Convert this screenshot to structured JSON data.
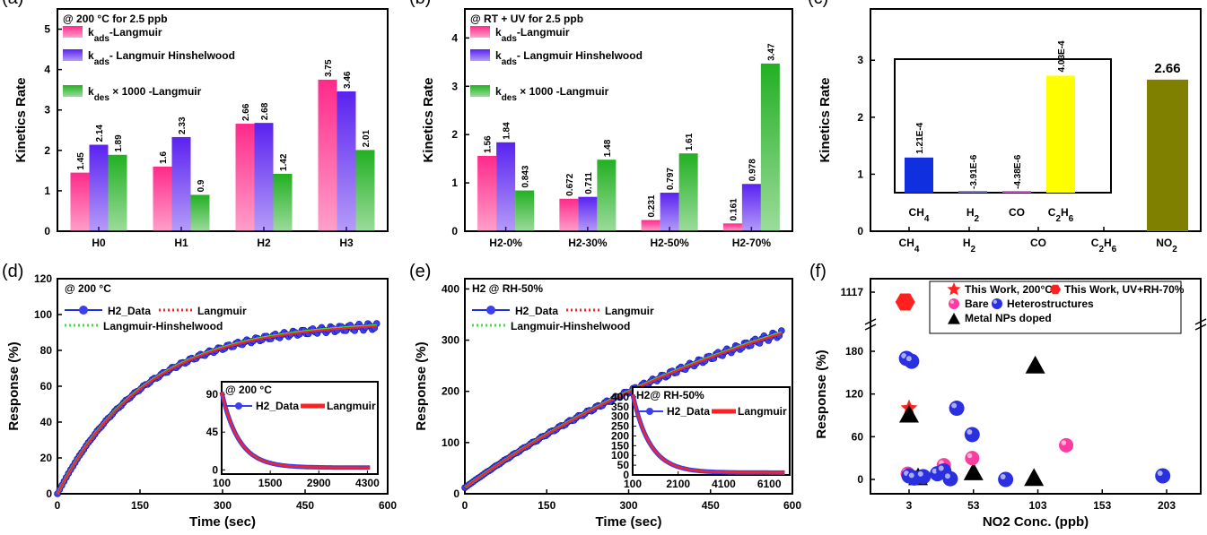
{
  "chart_data": [
    {
      "panel": "(a)",
      "type": "bar",
      "title": "@ 200 °C for 2.5 ppb",
      "ylabel": "Kinetics Rate",
      "xlabel": "",
      "categories": [
        "H0",
        "H1",
        "H2",
        "H3"
      ],
      "ylim": [
        0,
        5.5
      ],
      "yticks": [
        "0",
        "1",
        "2",
        "3",
        "4",
        "5"
      ],
      "series": [
        {
          "name": "kads-Langmuir",
          "color": "#ff2a8a",
          "values": [
            1.45,
            1.6,
            2.66,
            3.75
          ],
          "labels": [
            "1.45",
            "1.6",
            "2.66",
            "3.75"
          ]
        },
        {
          "name": "kads- Langmuir Hinshelwood",
          "color": "#5a22f0",
          "values": [
            2.14,
            2.33,
            2.68,
            3.46
          ],
          "labels": [
            "2.14",
            "2.33",
            "2.68",
            "3.46"
          ]
        },
        {
          "name": "kdes× 1000 -Langmuir",
          "color": "#22b022",
          "values": [
            1.89,
            0.9,
            1.42,
            2.01
          ],
          "labels": [
            "1.89",
            "0.9",
            "1.42",
            "2.01"
          ]
        }
      ]
    },
    {
      "panel": "(b)",
      "type": "bar",
      "title": "@ RT + UV for 2.5 ppb",
      "ylabel": "Kinetics Rate",
      "xlabel": "",
      "categories": [
        "H2-0%",
        "H2-30%",
        "H2-50%",
        "H2-70%"
      ],
      "ylim": [
        0,
        4.6
      ],
      "yticks": [
        "0",
        "1",
        "2",
        "3",
        "4"
      ],
      "series": [
        {
          "name": "kads-Langmuir",
          "color": "#ff2a8a",
          "values": [
            1.56,
            0.672,
            0.231,
            0.161
          ],
          "labels": [
            "1.56",
            "0.672",
            "0.231",
            "0.161"
          ]
        },
        {
          "name": "kads- Langmuir Hinshelwood",
          "color": "#5a22f0",
          "values": [
            1.84,
            0.711,
            0.797,
            0.978
          ],
          "labels": [
            "1.84",
            "0.711",
            "0.797",
            "0.978"
          ]
        },
        {
          "name": "kdes× 1000 -Langmuir",
          "color": "#22b022",
          "values": [
            0.843,
            1.48,
            1.61,
            3.47
          ],
          "labels": [
            "0.843",
            "1.48",
            "1.61",
            "3.47"
          ]
        }
      ]
    },
    {
      "panel": "(c)",
      "type": "bar",
      "ylabel": "Kinetics Rate",
      "xlabel": "",
      "categories": [
        "CH4",
        "H2",
        "CO",
        "C2H6",
        "NO2"
      ],
      "ylim": [
        0,
        3.9
      ],
      "yticks": [
        "0",
        "1",
        "2",
        "3"
      ],
      "values": [
        0,
        0,
        0,
        0,
        2.66
      ],
      "main_label": "2.66",
      "main_color": "#808000",
      "inset": {
        "categories": [
          "CH4",
          "H2",
          "CO",
          "C2H6"
        ],
        "values": [
          0.000121,
          -3.91e-06,
          -4.38e-06,
          0.000403
        ],
        "labels": [
          "1.21E-4",
          "-3.91E-6",
          "-4.38E-6",
          "4.03E-4"
        ],
        "colors": [
          "#1030e0",
          "#8080d0",
          "#e060e0",
          "#ffff00"
        ]
      }
    },
    {
      "panel": "(d)",
      "type": "line",
      "title": "@ 200 °C",
      "xlabel": "Time (sec)",
      "ylabel": "Response (%)",
      "xlim": [
        0,
        600
      ],
      "ylim": [
        0,
        120
      ],
      "xticks": [
        "0",
        "150",
        "300",
        "450",
        "600"
      ],
      "yticks": [
        "0",
        "20",
        "40",
        "60",
        "80",
        "100",
        "120"
      ],
      "series": [
        {
          "name": "H2_Data",
          "color": "#2030e0",
          "style": "markers"
        },
        {
          "name": "Langmuir",
          "color": "#ff2020",
          "style": "dotted"
        },
        {
          "name": "Langmuir-Hinshelwood",
          "color": "#40e040",
          "style": "dotted"
        }
      ],
      "inset": {
        "title": "@ 200 °C",
        "xlim": [
          100,
          4600
        ],
        "ylim": [
          -5,
          105
        ],
        "xticks": [
          "100",
          "1500",
          "2900",
          "4300"
        ],
        "yticks": [
          "0",
          "45",
          "90"
        ],
        "legend": [
          "H2_Data",
          "Langmuir"
        ]
      }
    },
    {
      "panel": "(e)",
      "type": "line",
      "title": "H2 @ RH-50%",
      "xlabel": "Time (sec)",
      "ylabel": "Response (%)",
      "xlim": [
        0,
        600
      ],
      "ylim": [
        0,
        420
      ],
      "xticks": [
        "0",
        "150",
        "300",
        "450",
        "600"
      ],
      "yticks": [
        "0",
        "100",
        "200",
        "300",
        "400"
      ],
      "series": [
        {
          "name": "H2_Data",
          "color": "#2030e0",
          "style": "markers"
        },
        {
          "name": "Langmuir",
          "color": "#ff2020",
          "style": "dotted"
        },
        {
          "name": "Langmuir-Hinshelwood",
          "color": "#40e040",
          "style": "dotted"
        }
      ],
      "inset": {
        "title": "H2@ RH-50%",
        "xlim": [
          100,
          7000
        ],
        "ylim": [
          0,
          450
        ],
        "xticks": [
          "100",
          "2100",
          "4100",
          "6100"
        ],
        "yticks": [
          "0",
          "50",
          "100",
          "150",
          "200",
          "250",
          "300",
          "350",
          "400"
        ],
        "legend": [
          "H2_Data",
          "Langmuir"
        ]
      }
    },
    {
      "panel": "(f)",
      "type": "scatter",
      "xlabel": "NO2 Conc. (ppb)",
      "ylabel": "Response (%)",
      "xticks": [
        "3",
        "53",
        "103",
        "153",
        "203"
      ],
      "yticks": [
        "0",
        "60",
        "120",
        "180"
      ],
      "ytick_break": "1117",
      "legend": [
        "This Work, 200°C",
        "This Work, UV+RH-70%",
        "Bare",
        "Heterostructures",
        "Metal NPs doped"
      ],
      "points": [
        {
          "group": "This Work, UV+RH-70%",
          "x": 0,
          "y": 1117,
          "color": "#ff2020"
        },
        {
          "group": "This Work, 200°C",
          "x": 3,
          "y": 100,
          "color": "#ff2020"
        },
        {
          "group": "Metal NPs doped",
          "x": 3,
          "y": 91
        },
        {
          "group": "Metal NPs doped",
          "x": 10,
          "y": 3
        },
        {
          "group": "Metal NPs doped",
          "x": 53,
          "y": 10
        },
        {
          "group": "Metal NPs doped",
          "x": 100,
          "y": 2
        },
        {
          "group": "Metal NPs doped",
          "x": 101,
          "y": 160
        },
        {
          "group": "Bare",
          "x": 2,
          "y": 8
        },
        {
          "group": "Bare",
          "x": 30,
          "y": 20
        },
        {
          "group": "Bare",
          "x": 52,
          "y": 30
        },
        {
          "group": "Bare",
          "x": 125,
          "y": 48
        },
        {
          "group": "Heterostructures",
          "x": 1,
          "y": 170
        },
        {
          "group": "Heterostructures",
          "x": 5,
          "y": 166
        },
        {
          "group": "Heterostructures",
          "x": 40,
          "y": 100
        },
        {
          "group": "Heterostructures",
          "x": 52,
          "y": 63
        },
        {
          "group": "Heterostructures",
          "x": 3,
          "y": 5
        },
        {
          "group": "Heterostructures",
          "x": 7,
          "y": 2
        },
        {
          "group": "Heterostructures",
          "x": 14,
          "y": 4
        },
        {
          "group": "Heterostructures",
          "x": 25,
          "y": 8
        },
        {
          "group": "Heterostructures",
          "x": 30,
          "y": 12
        },
        {
          "group": "Heterostructures",
          "x": 35,
          "y": 1
        },
        {
          "group": "Heterostructures",
          "x": 78,
          "y": 0
        },
        {
          "group": "Heterostructures",
          "x": 200,
          "y": 5
        }
      ]
    }
  ]
}
